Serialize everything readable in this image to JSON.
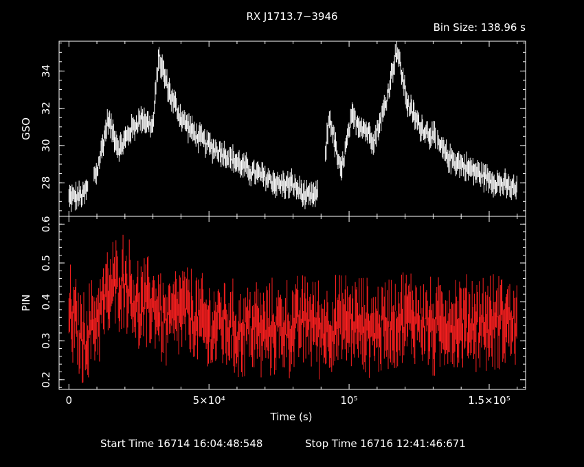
{
  "title": "RX J1713.7−3946",
  "bin_size": "Bin Size: 138.96 s",
  "start_time": "Start Time 16714 16:04:48:548",
  "stop_time": "Stop Time 16716 12:41:46:671",
  "chart_data": [
    {
      "type": "line",
      "ylabel": "GSO",
      "xlim": [
        -3500,
        163000
      ],
      "ylim": [
        26.2,
        35.6
      ],
      "yticks": [
        28,
        30,
        32,
        34
      ],
      "color": "#ffffff",
      "series": [
        {
          "x": [
            0,
            5000,
            10000,
            14000,
            18000,
            22000,
            26000,
            30000,
            32000,
            36000,
            40000,
            45000,
            50000,
            55000,
            60000,
            65000,
            70000,
            75000,
            80000,
            85000,
            90000,
            93000,
            97000,
            101000,
            105000,
            109000,
            113000,
            117000,
            121000,
            125000,
            130000,
            135000,
            140000,
            145000,
            150000,
            155000,
            160000
          ],
          "y": [
            27.2,
            27.3,
            28.6,
            31.4,
            29.8,
            30.8,
            31.5,
            31.0,
            34.8,
            32.8,
            31.5,
            30.6,
            30.0,
            29.6,
            29.1,
            28.6,
            28.3,
            27.9,
            27.9,
            27.2,
            27.4,
            31.6,
            28.5,
            31.5,
            31.0,
            30.3,
            32.2,
            35.2,
            32.2,
            31.1,
            30.5,
            29.4,
            29.0,
            28.6,
            28.2,
            27.9,
            27.6
          ]
        }
      ]
    },
    {
      "type": "line",
      "xlabel": "Time (s)",
      "ylabel": "PIN",
      "xlim": [
        -3500,
        163000
      ],
      "ylim": [
        0.175,
        0.62
      ],
      "yticks": [
        0.2,
        0.3,
        0.4,
        0.5,
        0.6
      ],
      "xticks": [
        0,
        50000,
        100000,
        150000
      ],
      "xtick_labels": [
        "0",
        "5×10⁴",
        "10⁵",
        "1.5×10⁵"
      ],
      "color": "#ff2020",
      "series": [
        {
          "x": [
            0,
            5000,
            10000,
            15000,
            20000,
            25000,
            30000,
            35000,
            40000,
            45000,
            50000,
            55000,
            60000,
            65000,
            70000,
            75000,
            80000,
            85000,
            90000,
            95000,
            100000,
            105000,
            110000,
            115000,
            120000,
            125000,
            130000,
            135000,
            140000,
            145000,
            150000,
            155000,
            160000
          ],
          "y": [
            0.38,
            0.3,
            0.36,
            0.43,
            0.46,
            0.38,
            0.4,
            0.34,
            0.38,
            0.36,
            0.33,
            0.35,
            0.32,
            0.34,
            0.32,
            0.34,
            0.33,
            0.36,
            0.33,
            0.34,
            0.35,
            0.34,
            0.33,
            0.35,
            0.36,
            0.36,
            0.33,
            0.35,
            0.34,
            0.35,
            0.34,
            0.36,
            0.34
          ]
        }
      ]
    }
  ]
}
